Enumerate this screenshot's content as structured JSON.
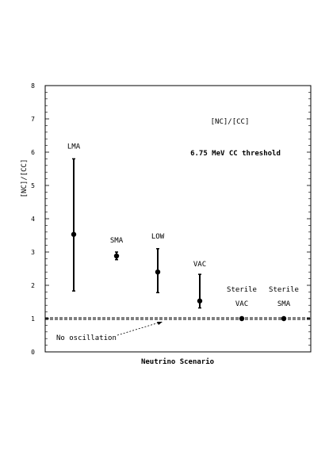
{
  "chart_data": {
    "type": "scatter",
    "ylabel": "[NC]/[CC]",
    "xlabel": "Neutrino Scenario",
    "ylim": [
      0,
      8
    ],
    "yticks": [
      "0",
      "1",
      "2",
      "3",
      "4",
      "5",
      "6",
      "7",
      "8"
    ],
    "annotations": {
      "title": "[NC]/[CC]",
      "threshold": "6.75 MeV CC threshold",
      "reference": "No oscillation"
    },
    "reference_line": {
      "y": 1.0,
      "style": "dashed"
    },
    "points": [
      {
        "label_line1": "LMA",
        "label_line2": "",
        "y": 3.53,
        "err_low": 1.83,
        "err_high": 5.8
      },
      {
        "label_line1": "SMA",
        "label_line2": "",
        "y": 2.88,
        "err_low": 2.77,
        "err_high": 3.0
      },
      {
        "label_line1": "LOW",
        "label_line2": "",
        "y": 2.4,
        "err_low": 1.78,
        "err_high": 3.1
      },
      {
        "label_line1": "VAC",
        "label_line2": "",
        "y": 1.53,
        "err_low": 1.32,
        "err_high": 2.33
      },
      {
        "label_line1": "Sterile",
        "label_line2": "VAC",
        "y": 1.0,
        "err_low": 1.0,
        "err_high": 1.0
      },
      {
        "label_line1": "Sterile",
        "label_line2": "SMA",
        "y": 1.0,
        "err_low": 1.0,
        "err_high": 1.0
      }
    ]
  }
}
